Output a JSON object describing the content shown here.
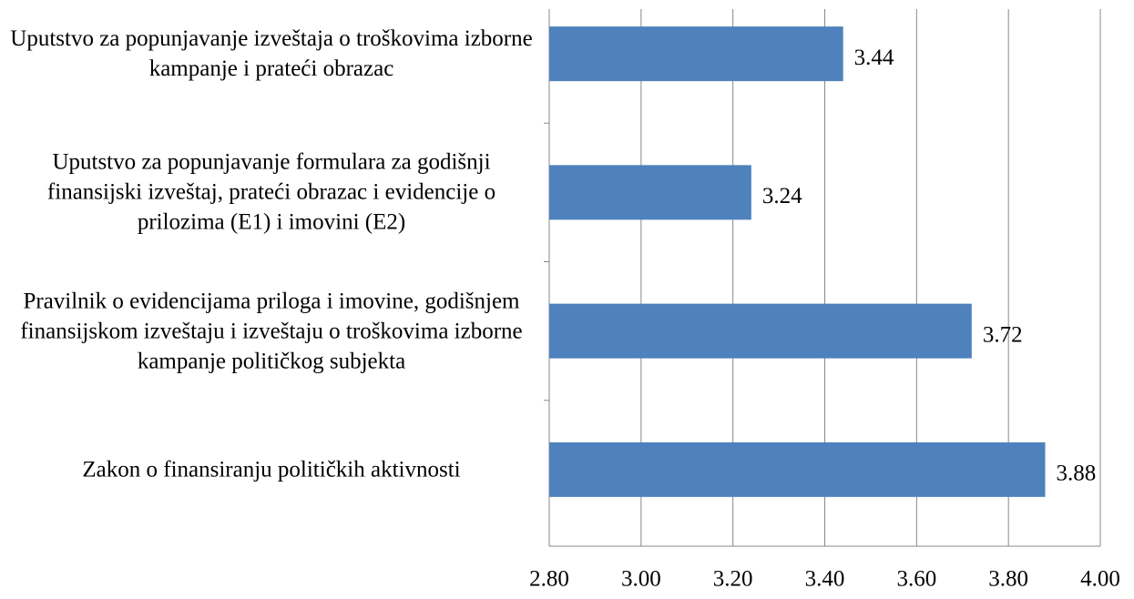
{
  "chart_data": {
    "type": "bar",
    "orientation": "horizontal",
    "categories": [
      "Uputstvo za popunjavanje izveštaja o troškovima izborne kampanje i prateći obrazac",
      "Uputstvo za popunjavanje formulara za godišnji finansijski izveštaj, prateći obrazac i evidencije o prilozima (E1) i imovini (E2)",
      "Pravilnik o evidencijama priloga i imovine,  godišnjem finansijskom izveštaju i izveštaju o troškovima izborne kampanje političkog subjekta",
      "Zakon o finansiranju političkih aktivnosti"
    ],
    "values": [
      3.44,
      3.24,
      3.72,
      3.88
    ],
    "color": "#4f81bd",
    "xlim": [
      2.8,
      4.0
    ],
    "xticks": [
      {
        "value": 2.8,
        "label": "2.80"
      },
      {
        "value": 3.0,
        "label": "3.00"
      },
      {
        "value": 3.2,
        "label": "3.20"
      },
      {
        "value": 3.4,
        "label": "3.40"
      },
      {
        "value": 3.6,
        "label": "3.60"
      },
      {
        "value": 3.8,
        "label": "3.80"
      },
      {
        "value": 4.0,
        "label": "4.00"
      }
    ],
    "grid": true
  }
}
